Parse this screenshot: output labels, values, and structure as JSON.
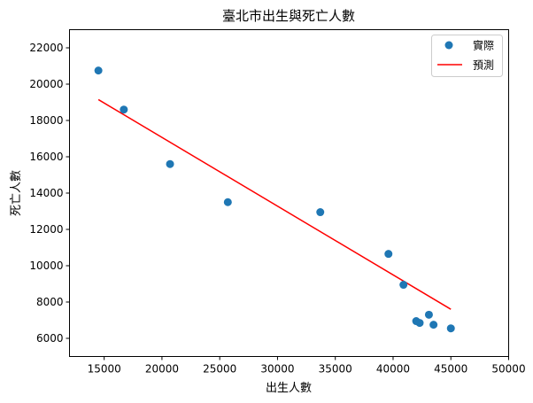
{
  "chart_data": {
    "type": "scatter",
    "title": "臺北市出生與死亡人數",
    "xlabel": "出生人數",
    "ylabel": "死亡人數",
    "xlim": [
      12000,
      50000
    ],
    "ylim": [
      5000,
      23000
    ],
    "xticks": [
      15000,
      20000,
      25000,
      30000,
      35000,
      40000,
      45000,
      50000
    ],
    "yticks": [
      6000,
      8000,
      10000,
      12000,
      14000,
      16000,
      18000,
      20000,
      22000
    ],
    "grid": false,
    "legend_position": "top-right",
    "series": [
      {
        "name": "實際",
        "kind": "scatter",
        "color": "#1f77b4",
        "points": [
          {
            "x": 14500,
            "y": 20750
          },
          {
            "x": 16700,
            "y": 18600
          },
          {
            "x": 20700,
            "y": 15600
          },
          {
            "x": 25700,
            "y": 13500
          },
          {
            "x": 33700,
            "y": 12950
          },
          {
            "x": 39600,
            "y": 10650
          },
          {
            "x": 40900,
            "y": 8950
          },
          {
            "x": 42000,
            "y": 6950
          },
          {
            "x": 42300,
            "y": 6850
          },
          {
            "x": 43100,
            "y": 7300
          },
          {
            "x": 43500,
            "y": 6750
          },
          {
            "x": 45000,
            "y": 6550
          }
        ]
      },
      {
        "name": "預測",
        "kind": "line",
        "color": "#ff0000",
        "points": [
          {
            "x": 14500,
            "y": 19150
          },
          {
            "x": 45000,
            "y": 7600
          }
        ]
      }
    ]
  }
}
